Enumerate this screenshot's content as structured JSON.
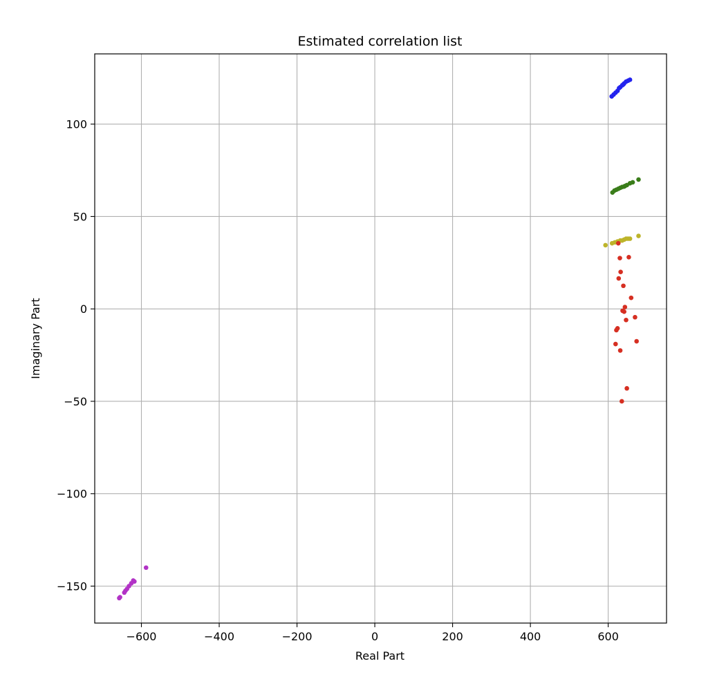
{
  "chart_data": {
    "type": "scatter",
    "title": "Estimated correlation list",
    "xlabel": "Real Part",
    "ylabel": "Imaginary Part",
    "xlim": [
      -720,
      750
    ],
    "ylim": [
      -170,
      138
    ],
    "xticks": [
      -600,
      -400,
      -200,
      0,
      200,
      400,
      600
    ],
    "yticks": [
      -150,
      -100,
      -50,
      0,
      50,
      100
    ],
    "xtick_labels": [
      "−600",
      "−400",
      "−200",
      "0",
      "200",
      "400",
      "600"
    ],
    "ytick_labels": [
      "−150",
      "−100",
      "−50",
      "0",
      "50",
      "100"
    ],
    "grid": true,
    "series": [
      {
        "color": "#2323ee",
        "points": [
          [
            609,
            115
          ],
          [
            614,
            116
          ],
          [
            619,
            117
          ],
          [
            624,
            118
          ],
          [
            631,
            120
          ],
          [
            636,
            121
          ],
          [
            641,
            122
          ],
          [
            646,
            123
          ],
          [
            651,
            123.5
          ],
          [
            656,
            124
          ],
          [
            628,
            119.5
          ],
          [
            639,
            121.5
          ]
        ]
      },
      {
        "color": "#3a7d1a",
        "points": [
          [
            611,
            63
          ],
          [
            616,
            64
          ],
          [
            621,
            64.5
          ],
          [
            626,
            65
          ],
          [
            631,
            65.5
          ],
          [
            636,
            66
          ],
          [
            643,
            66.5
          ],
          [
            648,
            67
          ],
          [
            656,
            68
          ],
          [
            663,
            68.5
          ],
          [
            678,
            70
          ],
          [
            641,
            66.2
          ]
        ]
      },
      {
        "color": "#bdb42a",
        "points": [
          [
            593,
            34.5
          ],
          [
            610,
            35.5
          ],
          [
            617,
            36
          ],
          [
            624,
            36.5
          ],
          [
            631,
            37
          ],
          [
            636,
            37
          ],
          [
            641,
            37.5
          ],
          [
            646,
            38
          ],
          [
            651,
            38
          ],
          [
            656,
            38
          ],
          [
            678,
            39.5
          ]
        ]
      },
      {
        "color": "#d62f22",
        "points": [
          [
            626,
            35.5
          ],
          [
            630,
            27.5
          ],
          [
            653,
            28
          ],
          [
            632,
            20
          ],
          [
            627,
            16.5
          ],
          [
            639,
            12.5
          ],
          [
            659,
            6
          ],
          [
            643,
            1
          ],
          [
            637,
            -1
          ],
          [
            641,
            -1.5
          ],
          [
            646,
            -6
          ],
          [
            669,
            -4.5
          ],
          [
            624,
            -10.5
          ],
          [
            621,
            -11.5
          ],
          [
            673,
            -17.5
          ],
          [
            619,
            -19
          ],
          [
            631,
            -22.5
          ],
          [
            648,
            -43
          ],
          [
            635,
            -50
          ]
        ]
      },
      {
        "color": "#b233c6",
        "points": [
          [
            -588,
            -140
          ],
          [
            -621,
            -147
          ],
          [
            -618,
            -147.5
          ],
          [
            -626,
            -148.5
          ],
          [
            -632,
            -150
          ],
          [
            -637,
            -151.5
          ],
          [
            -641,
            -152.5
          ],
          [
            -644,
            -153.5
          ],
          [
            -655,
            -156
          ],
          [
            -657,
            -156.5
          ]
        ]
      }
    ]
  }
}
